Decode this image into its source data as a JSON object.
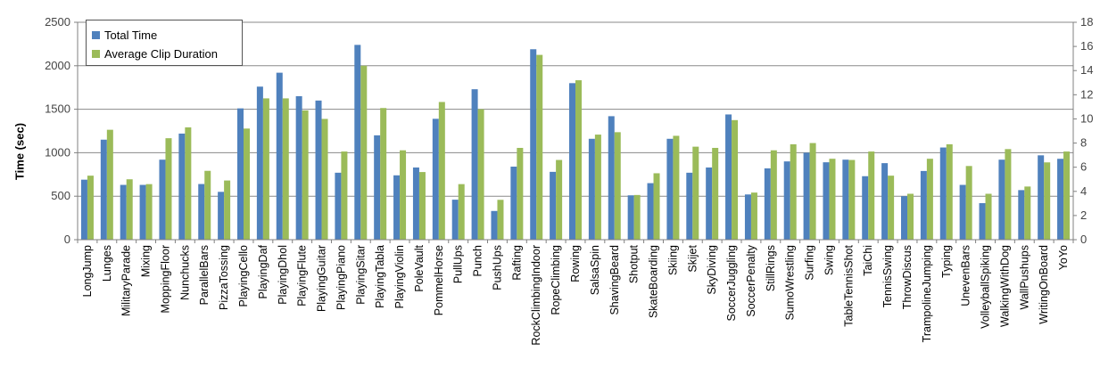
{
  "chart_data": {
    "type": "bar",
    "ylabel": "Time (sec)",
    "ylim": [
      0,
      2500
    ],
    "y2lim": [
      0,
      18
    ],
    "yticks": [
      "0",
      "500",
      "1000",
      "1500",
      "2000",
      "2500"
    ],
    "y2ticks": [
      "0",
      "2",
      "4",
      "6",
      "8",
      "10",
      "12",
      "14",
      "16",
      "18"
    ],
    "grid": true,
    "legend_position": "top-left",
    "categories": [
      "LongJump",
      "Lunges",
      "MilitaryParade",
      "Mixing",
      "MoppingFloor",
      "Nunchucks",
      "ParallelBars",
      "PizzaTossing",
      "PlayingCello",
      "PlayingDaf",
      "PlayingDhol",
      "PlayingFlute",
      "PlayingGuitar",
      "PlayingPiano",
      "PlayingSitar",
      "PlayingTabla",
      "PlayingViolin",
      "PoleVault",
      "PommelHorse",
      "PullUps",
      "Punch",
      "PushUps",
      "Rafting",
      "RockClimbingIndoor",
      "RopeClimbing",
      "Rowing",
      "SalsaSpin",
      "ShavingBeard",
      "Shotput",
      "SkateBoarding",
      "Skiing",
      "Skijet",
      "SkyDiving",
      "SoccerJuggling",
      "SoccerPenalty",
      "StillRings",
      "SumoWrestling",
      "Surfing",
      "Swing",
      "TableTennisShot",
      "TaiChi",
      "TennisSwing",
      "ThrowDiscus",
      "TrampolineJumping",
      "Typing",
      "UnevenBars",
      "VolleyballSpiking",
      "WalkingWithDog",
      "WallPushups",
      "WritingOnBoard",
      "YoYo"
    ],
    "series": [
      {
        "name": "Total Time",
        "axis": "left",
        "color": "#4f81bd",
        "values": [
          690,
          1150,
          630,
          630,
          920,
          1220,
          640,
          550,
          1510,
          1760,
          1920,
          1650,
          1600,
          770,
          2240,
          1200,
          740,
          830,
          1390,
          460,
          1730,
          330,
          840,
          2190,
          780,
          1800,
          1160,
          1420,
          510,
          650,
          1160,
          770,
          830,
          1440,
          520,
          820,
          900,
          1000,
          890,
          920,
          730,
          880,
          500,
          790,
          1060,
          630,
          420,
          920,
          570,
          970,
          930
        ]
      },
      {
        "name": "Average Clip Duration",
        "axis": "right",
        "color": "#9bbb59",
        "values": [
          5.3,
          9.1,
          5.0,
          4.6,
          8.4,
          9.3,
          5.7,
          4.9,
          9.2,
          11.7,
          11.7,
          10.7,
          10.0,
          7.3,
          14.4,
          10.9,
          7.4,
          5.6,
          11.4,
          4.6,
          10.8,
          3.3,
          7.6,
          15.3,
          6.6,
          13.2,
          8.7,
          8.9,
          3.7,
          5.5,
          8.6,
          7.7,
          7.6,
          9.9,
          3.9,
          7.4,
          7.9,
          8.0,
          6.7,
          6.6,
          7.3,
          5.3,
          3.8,
          6.7,
          7.9,
          6.1,
          3.8,
          7.5,
          4.4,
          6.4,
          7.3
        ]
      }
    ]
  }
}
